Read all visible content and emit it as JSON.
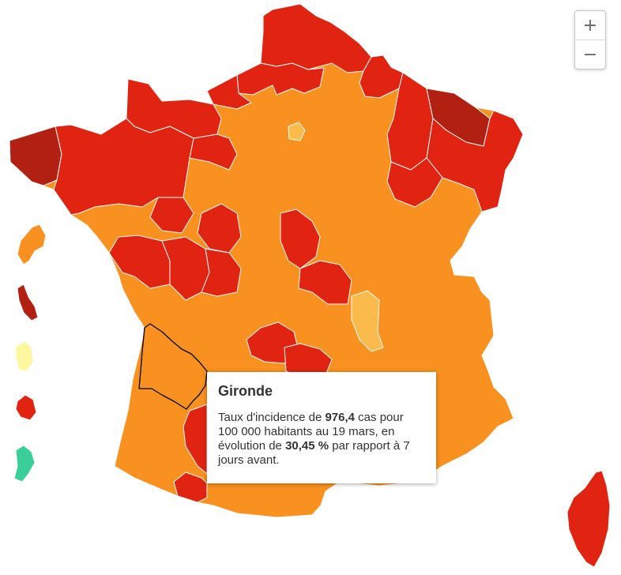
{
  "zoom": {
    "in_label": "+",
    "out_label": "−"
  },
  "legend_colors": {
    "very_high": "#b22012",
    "high": "#e02411",
    "medium": "#f8911f",
    "low": "#fbbb4c",
    "very_low": "#fdf8a0",
    "minimal": "#3acf98"
  },
  "tooltip": {
    "department": "Gironde",
    "t1": "Taux d'incidence de ",
    "rate": "976,4",
    "t2": " cas pour 100 000 habitants au 19 mars, en évolution de ",
    "evolution": "30,45 %",
    "t3": " par rapport à 7 jours avant."
  }
}
